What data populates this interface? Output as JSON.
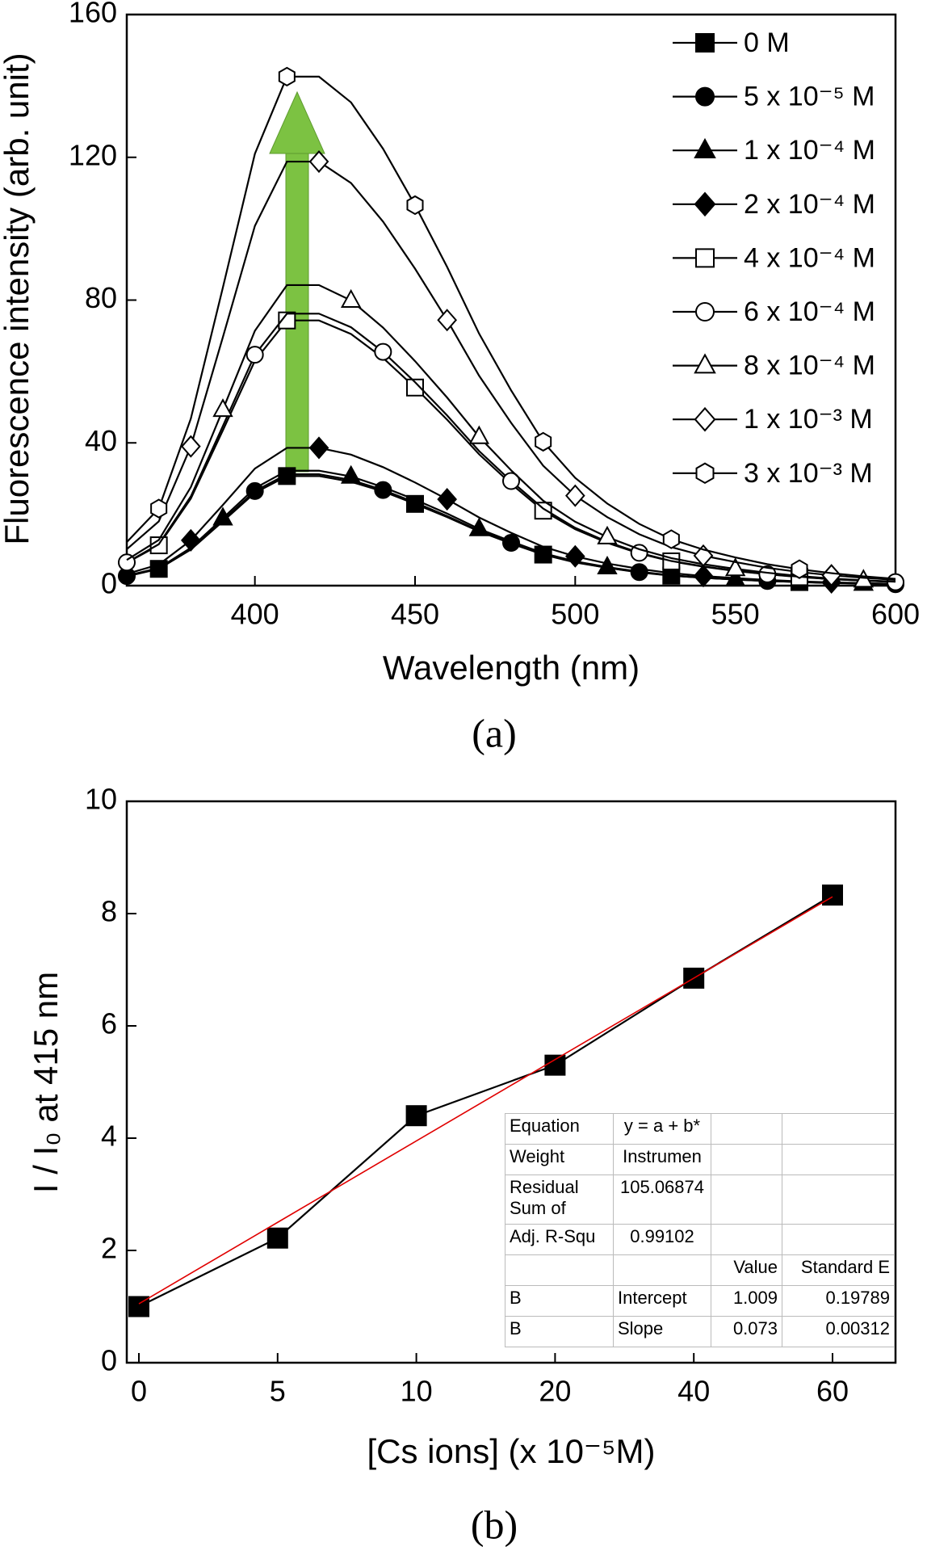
{
  "chart_data": [
    {
      "type": "line",
      "x_label": "Wavelength (nm)",
      "y_label": "Fluorescence intensity (arb. unit)",
      "caption": "(a)",
      "x": [
        360,
        370,
        380,
        390,
        400,
        410,
        420,
        430,
        440,
        450,
        460,
        470,
        480,
        490,
        500,
        510,
        520,
        530,
        540,
        550,
        560,
        570,
        580,
        590,
        600
      ],
      "xlim": [
        360,
        600
      ],
      "xticks": [
        400,
        450,
        500,
        550,
        600
      ],
      "ylim": [
        0,
        160
      ],
      "yticks": [
        0,
        40,
        80,
        120,
        160
      ],
      "legend": "upper right",
      "series": [
        {
          "name": "0 M",
          "color": "#000000",
          "marker": "filled-square",
          "values": [
            2.6,
            4.7,
            10.1,
            18.0,
            26.0,
            30.7,
            30.7,
            29.1,
            26.4,
            22.9,
            19.2,
            15.2,
            11.8,
            8.7,
            6.5,
            5.0,
            3.7,
            2.8,
            2.2,
            1.7,
            1.3,
            1.0,
            0.7,
            0.6,
            0.4
          ]
        },
        {
          "name": "5 x 10⁻⁵ M",
          "color": "#000000",
          "marker": "filled-circle",
          "values": [
            2.7,
            4.7,
            10.2,
            18.3,
            26.5,
            31.2,
            31.2,
            29.6,
            26.8,
            23.3,
            19.5,
            15.4,
            12.0,
            8.8,
            6.6,
            5.0,
            3.8,
            2.8,
            2.2,
            1.7,
            1.3,
            1.0,
            0.8,
            0.6,
            0.4
          ]
        },
        {
          "name": "1 x 10⁻⁴ M",
          "color": "#000000",
          "marker": "filled-triangle",
          "values": [
            2.8,
            4.9,
            10.6,
            18.9,
            27.3,
            32.2,
            32.2,
            30.6,
            27.6,
            24.1,
            20.2,
            15.9,
            12.4,
            9.1,
            6.8,
            5.2,
            3.9,
            2.9,
            2.3,
            1.8,
            1.4,
            1.0,
            0.8,
            0.6,
            0.4
          ]
        },
        {
          "name": "2 x 10⁻⁴ M",
          "color": "#000000",
          "marker": "filled-diamond",
          "values": [
            3.3,
            5.9,
            12.7,
            22.6,
            32.8,
            38.6,
            38.6,
            36.7,
            33.2,
            28.9,
            24.2,
            19.1,
            14.8,
            10.9,
            8.2,
            6.2,
            4.7,
            3.5,
            2.7,
            2.1,
            1.6,
            1.2,
            0.9,
            0.7,
            0.5
          ]
        },
        {
          "name": "4 x 10⁻⁴ M",
          "color": "#000000",
          "marker": "open-square",
          "values": [
            6.4,
            11.3,
            24.4,
            43.5,
            63.0,
            74.3,
            74.3,
            70.5,
            63.8,
            55.5,
            46.5,
            36.8,
            28.5,
            21.0,
            15.8,
            12.0,
            9.0,
            6.8,
            5.3,
            4.1,
            3.2,
            2.4,
            1.8,
            1.4,
            1.0
          ]
        },
        {
          "name": "6 x 10⁻⁴ M",
          "color": "#000000",
          "marker": "open-circle",
          "values": [
            6.5,
            11.6,
            25.0,
            44.7,
            64.7,
            76.2,
            76.2,
            72.4,
            65.5,
            57.0,
            47.7,
            37.7,
            29.3,
            21.6,
            16.2,
            12.3,
            9.2,
            6.9,
            5.4,
            4.2,
            3.2,
            2.5,
            1.8,
            1.4,
            1.0
          ]
        },
        {
          "name": "8 x 10⁻⁴ M",
          "color": "#000000",
          "marker": "open-triangle",
          "values": [
            7.2,
            12.8,
            27.6,
            49.3,
            71.4,
            84.2,
            84.2,
            79.9,
            72.3,
            62.9,
            52.7,
            41.7,
            32.3,
            23.8,
            17.9,
            13.6,
            10.2,
            7.7,
            6.0,
            4.7,
            3.6,
            2.7,
            2.0,
            1.5,
            1.1
          ]
        },
        {
          "name": "1 x 10⁻³ M",
          "color": "#000000",
          "marker": "open-diamond",
          "values": [
            10.2,
            18.0,
            39.0,
            69.6,
            100.8,
            118.8,
            118.8,
            112.8,
            102.0,
            88.8,
            74.4,
            58.8,
            45.6,
            33.6,
            25.2,
            19.2,
            14.4,
            10.8,
            8.4,
            6.6,
            5.0,
            3.8,
            2.9,
            2.2,
            1.6
          ]
        },
        {
          "name": "3 x 10⁻³ M",
          "color": "#000000",
          "marker": "open-hexagon",
          "values": [
            12.2,
            21.6,
            46.8,
            83.5,
            121.0,
            142.6,
            142.6,
            135.4,
            122.4,
            106.6,
            89.3,
            70.6,
            54.7,
            40.3,
            30.2,
            23.0,
            17.3,
            13.0,
            10.1,
            7.9,
            6.0,
            4.6,
            3.5,
            2.6,
            1.9
          ]
        }
      ]
    },
    {
      "type": "line",
      "x_label": "[Cs ions] (x 10⁻⁵M)",
      "y_label": "I / I₀ at 415 nm",
      "caption": "(b)",
      "categories": [
        "0",
        "5",
        "10",
        "20",
        "40",
        "60"
      ],
      "ylim": [
        0,
        10
      ],
      "yticks": [
        0,
        2,
        4,
        6,
        8,
        10
      ],
      "series": [
        {
          "color": "#000000",
          "marker": "filled-square",
          "values": [
            1.0,
            2.22,
            4.4,
            5.3,
            6.85,
            8.33
          ]
        },
        {
          "color": "#e00000",
          "marker": "none",
          "values": [
            1.05,
            2.5,
            3.95,
            5.4,
            6.85,
            8.3
          ]
        }
      ],
      "fit_table": {
        "stats": [
          [
            "Equation",
            "y = a + b*"
          ],
          [
            "Weight",
            "Instrumen"
          ],
          [
            "Residual Sum of",
            "105.06874"
          ],
          [
            "Adj. R-Squ",
            "0.99102"
          ]
        ],
        "header": [
          "Value",
          "Standard E"
        ],
        "rows": [
          [
            "B",
            "Intercept",
            "1.009",
            "0.19789"
          ],
          [
            "B",
            "Slope",
            "0.073",
            "0.00312"
          ]
        ]
      }
    }
  ]
}
